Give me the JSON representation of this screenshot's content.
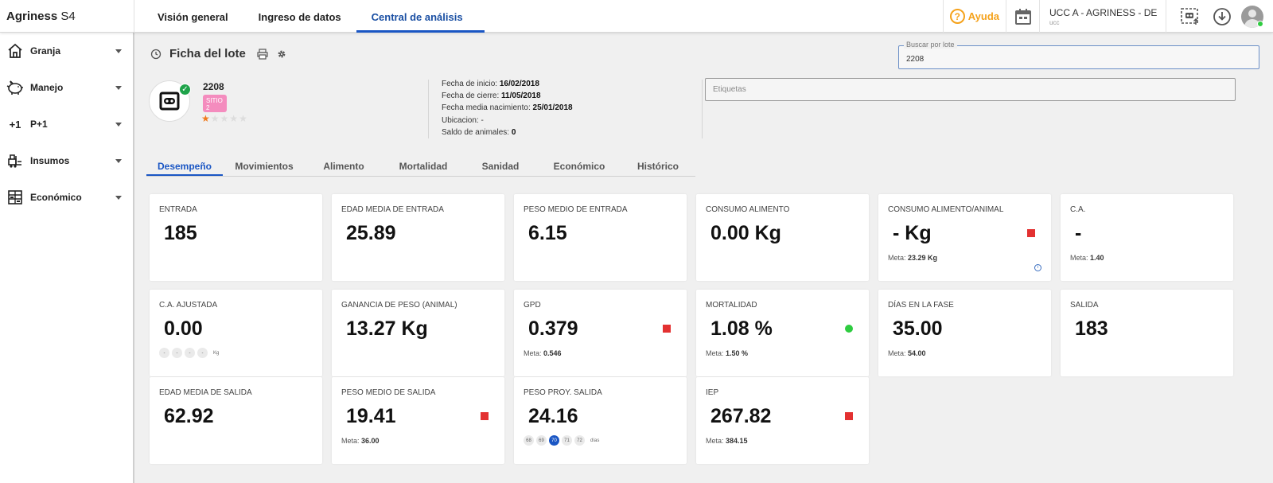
{
  "app": {
    "brand": "Agriness",
    "brand_suffix": "S4"
  },
  "topnav": [
    {
      "label": "Visión general",
      "active": false
    },
    {
      "label": "Ingreso de datos",
      "active": false
    },
    {
      "label": "Central de análisis",
      "active": true
    }
  ],
  "topright": {
    "help_label": "Ayuda",
    "farm_name": "UCC A - AGRINESS - DE...",
    "farm_sub": "ucc"
  },
  "sidebar": {
    "items": [
      {
        "label": "Granja",
        "icon": "house-icon"
      },
      {
        "label": "Manejo",
        "icon": "pig-icon"
      },
      {
        "label": "P+1",
        "icon": "plus-one-icon",
        "icon_text": "+1"
      },
      {
        "label": "Insumos",
        "icon": "forklift-icon"
      },
      {
        "label": "Económico",
        "icon": "spreadsheet-icon"
      }
    ]
  },
  "lot": {
    "title": "Ficha del lote",
    "number": "2208",
    "tag": "SITIO 2",
    "rating": 1,
    "rating_max": 5,
    "details": [
      {
        "label": "Fecha de inicio:",
        "value": "16/02/2018"
      },
      {
        "label": "Fecha de cierre:",
        "value": "11/05/2018"
      },
      {
        "label": "Fecha media nacimiento:",
        "value": "25/01/2018"
      },
      {
        "label": "Ubicacion: -",
        "value": ""
      },
      {
        "label": "Saldo de animales:",
        "value": "0"
      }
    ]
  },
  "search": {
    "legend": "Buscar por lote",
    "value": "2208"
  },
  "labels_placeholder": "Etiquetas",
  "tabs": [
    {
      "label": "Desempeño",
      "active": true
    },
    {
      "label": "Movimientos",
      "active": false
    },
    {
      "label": "Alimento",
      "active": false
    },
    {
      "label": "Mortalidad",
      "active": false
    },
    {
      "label": "Sanidad",
      "active": false
    },
    {
      "label": "Económico",
      "active": false
    },
    {
      "label": "Histórico",
      "active": false
    }
  ],
  "metrics": [
    {
      "label": "ENTRADA",
      "value": "185"
    },
    {
      "label": "EDAD MEDIA DE ENTRADA",
      "value": "25.89"
    },
    {
      "label": "PESO MEDIO DE ENTRADA",
      "value": "6.15"
    },
    {
      "label": "CONSUMO ALIMENTO",
      "value": "0.00 Kg"
    },
    {
      "label": "CONSUMO ALIMENTO/ANIMAL",
      "value": "- Kg",
      "status": "red",
      "goal_label": "Meta:",
      "goal": "23.29 Kg",
      "info": true
    },
    {
      "label": "C.A.",
      "value": "-",
      "goal_label": "Meta:",
      "goal": "1.40"
    },
    {
      "label": "C.A. AJUSTADA",
      "value": "0.00",
      "pills": [
        "-",
        "-",
        "-",
        "-"
      ],
      "pill_unit": "Kg"
    },
    {
      "label": "GANANCIA DE PESO (ANIMAL)",
      "value": "13.27 Kg"
    },
    {
      "label": "GPD",
      "value": "0.379",
      "status": "red",
      "goal_label": "Meta:",
      "goal": "0.546"
    },
    {
      "label": "MORTALIDAD",
      "value": "1.08 %",
      "status": "green",
      "goal_label": "Meta:",
      "goal": "1.50 %"
    },
    {
      "label": "DÍAS EN LA FASE",
      "value": "35.00",
      "goal_label": "Meta:",
      "goal": "54.00"
    },
    {
      "label": "SALIDA",
      "value": "183"
    },
    {
      "label": "EDAD MEDIA DE SALIDA",
      "value": "62.92"
    },
    {
      "label": "PESO MEDIO DE SALIDA",
      "value": "19.41",
      "status": "red",
      "goal_label": "Meta:",
      "goal": "36.00"
    },
    {
      "label": "PESO PROY. SALIDA",
      "value": "24.16",
      "pills": [
        "68",
        "69",
        "70",
        "71",
        "72"
      ],
      "pill_active": "70",
      "pill_unit": "días"
    },
    {
      "label": "IEP",
      "value": "267.82",
      "status": "red",
      "goal_label": "Meta:",
      "goal": "384.15"
    }
  ],
  "colors": {
    "accent": "#1a56c4",
    "help": "#f5a21b",
    "status_red": "#e33131",
    "status_green": "#2ecc40",
    "tag_pink": "#f48cbe",
    "star": "#f07b1d"
  }
}
